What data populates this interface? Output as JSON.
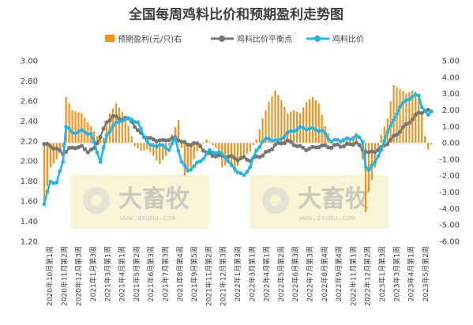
{
  "chart_data": {
    "type": "bar+line",
    "title": "全国每周鸡料比价和预期盈利走势图",
    "legend": [
      "预期盈利(元/只)右",
      "鸡料比价平衡点",
      "鸡料比价"
    ],
    "legend_position": "top",
    "colors": {
      "bar": "#f0941e",
      "balance": "#767676",
      "ratio": "#1fb6e8"
    },
    "left_axis": {
      "min": 1.2,
      "max": 3.0,
      "step": 0.2,
      "ticks": [
        "1.20",
        "1.40",
        "1.60",
        "1.80",
        "2.00",
        "2.20",
        "2.40",
        "2.60",
        "2.80",
        "3.00"
      ]
    },
    "right_axis": {
      "min": -6.0,
      "max": 5.0,
      "step": 1.0,
      "ticks": [
        "-6.00",
        "-5.00",
        "-4.00",
        "-3.00",
        "-2.00",
        "-1.00",
        "0.00",
        "1.00",
        "2.00",
        "3.00",
        "4.00",
        "5.00"
      ]
    },
    "x_tick_labels": [
      "2020年10月第1周",
      "2020年11月第2周",
      "2020年12月第3周",
      "2021年1月第3周",
      "2021年3月第1周",
      "2021年4月第1周",
      "2021年5月第2周",
      "2021年6月第3周",
      "2021年7月第3周",
      "2021年8月第4周",
      "2021年9月第5周",
      "2021年11月第2周",
      "2021年12月第3周",
      "2022年1月第3周",
      "2022年3月第1周",
      "2022年4月第1周",
      "2022年5月第2周",
      "2022年6月第3周",
      "2022年7月第3周",
      "2022年8月第4周",
      "2022年9月第4周",
      "2022年11月第1周",
      "2022年12月第2周",
      "2023年1月第3周",
      "2023年3月第1周",
      "2023年4月第1周",
      "2023年5月第2周"
    ],
    "watermark": {
      "brand": "大畜牧",
      "url": "www.dxumu.com"
    },
    "anchors": {
      "ratio": [
        [
          0,
          1.57
        ],
        [
          2,
          1.8
        ],
        [
          4,
          1.78
        ],
        [
          6,
          2.0
        ],
        [
          7,
          2.35
        ],
        [
          9,
          2.28
        ],
        [
          12,
          2.3
        ],
        [
          15,
          2.27
        ],
        [
          18,
          2.0
        ],
        [
          20,
          2.25
        ],
        [
          22,
          2.35
        ],
        [
          25,
          2.41
        ],
        [
          28,
          2.42
        ],
        [
          30,
          2.38
        ],
        [
          32,
          2.25
        ],
        [
          34,
          2.15
        ],
        [
          37,
          2.16
        ],
        [
          40,
          2.12
        ],
        [
          42,
          2.22
        ],
        [
          44,
          2.0
        ],
        [
          46,
          1.9
        ],
        [
          50,
          2.0
        ],
        [
          53,
          2.1
        ],
        [
          56,
          2.08
        ],
        [
          58,
          2.05
        ],
        [
          60,
          1.95
        ],
        [
          62,
          1.9
        ],
        [
          64,
          1.85
        ],
        [
          66,
          1.95
        ],
        [
          68,
          2.1
        ],
        [
          70,
          2.2
        ],
        [
          72,
          2.22
        ],
        [
          75,
          2.2
        ],
        [
          78,
          2.28
        ],
        [
          82,
          2.33
        ],
        [
          86,
          2.32
        ],
        [
          89,
          2.3
        ],
        [
          92,
          2.2
        ],
        [
          95,
          2.21
        ],
        [
          98,
          2.22
        ],
        [
          100,
          2.25
        ],
        [
          102,
          2.2
        ],
        [
          103,
          1.95
        ],
        [
          104,
          1.9
        ],
        [
          106,
          2.0
        ],
        [
          108,
          2.1
        ],
        [
          110,
          2.3
        ],
        [
          112,
          2.4
        ],
        [
          114,
          2.55
        ],
        [
          116,
          2.6
        ],
        [
          118,
          2.65
        ],
        [
          120,
          2.65
        ],
        [
          121,
          2.55
        ],
        [
          122,
          2.5
        ],
        [
          123,
          2.45
        ],
        [
          124,
          2.5
        ]
      ],
      "balance": [
        [
          0,
          2.17
        ],
        [
          2,
          2.15
        ],
        [
          4,
          2.12
        ],
        [
          6,
          2.08
        ],
        [
          8,
          2.12
        ],
        [
          10,
          2.14
        ],
        [
          12,
          2.14
        ],
        [
          14,
          2.1
        ],
        [
          16,
          2.12
        ],
        [
          18,
          2.25
        ],
        [
          20,
          2.38
        ],
        [
          22,
          2.45
        ],
        [
          24,
          2.42
        ],
        [
          26,
          2.43
        ],
        [
          28,
          2.4
        ],
        [
          30,
          2.3
        ],
        [
          32,
          2.25
        ],
        [
          34,
          2.22
        ],
        [
          36,
          2.21
        ],
        [
          38,
          2.2
        ],
        [
          40,
          2.22
        ],
        [
          42,
          2.23
        ],
        [
          44,
          2.2
        ],
        [
          46,
          2.16
        ],
        [
          48,
          2.18
        ],
        [
          50,
          2.15
        ],
        [
          52,
          2.08
        ],
        [
          54,
          2.06
        ],
        [
          56,
          2.05
        ],
        [
          58,
          2.05
        ],
        [
          60,
          2.04
        ],
        [
          62,
          2.02
        ],
        [
          64,
          2.03
        ],
        [
          66,
          2.01
        ],
        [
          68,
          2.04
        ],
        [
          70,
          2.06
        ],
        [
          72,
          2.1
        ],
        [
          74,
          2.16
        ],
        [
          76,
          2.18
        ],
        [
          78,
          2.2
        ],
        [
          80,
          2.17
        ],
        [
          82,
          2.14
        ],
        [
          84,
          2.12
        ],
        [
          86,
          2.13
        ],
        [
          88,
          2.15
        ],
        [
          90,
          2.15
        ],
        [
          92,
          2.14
        ],
        [
          94,
          2.16
        ],
        [
          96,
          2.15
        ],
        [
          98,
          2.17
        ],
        [
          100,
          2.18
        ],
        [
          102,
          2.12
        ],
        [
          104,
          2.08
        ],
        [
          106,
          2.1
        ],
        [
          108,
          2.13
        ],
        [
          110,
          2.18
        ],
        [
          112,
          2.24
        ],
        [
          114,
          2.3
        ],
        [
          116,
          2.36
        ],
        [
          118,
          2.42
        ],
        [
          120,
          2.48
        ],
        [
          122,
          2.5
        ],
        [
          124,
          2.5
        ]
      ],
      "profit": [
        [
          0,
          -3.8
        ],
        [
          2,
          -1.5
        ],
        [
          4,
          -1.0
        ],
        [
          6,
          -0.3
        ],
        [
          7,
          2.8
        ],
        [
          9,
          2.0
        ],
        [
          12,
          1.8
        ],
        [
          15,
          1.0
        ],
        [
          17,
          0.4
        ],
        [
          19,
          0.3
        ],
        [
          21,
          1.8
        ],
        [
          23,
          2.4
        ],
        [
          25,
          1.9
        ],
        [
          27,
          1.0
        ],
        [
          29,
          -0.2
        ],
        [
          31,
          -0.5
        ],
        [
          33,
          -0.4
        ],
        [
          35,
          -0.8
        ],
        [
          37,
          -1.3
        ],
        [
          39,
          -0.8
        ],
        [
          41,
          0.5
        ],
        [
          43,
          1.4
        ],
        [
          45,
          -2.0
        ],
        [
          47,
          -1.5
        ],
        [
          49,
          -0.5
        ],
        [
          52,
          0.2
        ],
        [
          55,
          -0.3
        ],
        [
          57,
          -1.5
        ],
        [
          59,
          -1.2
        ],
        [
          61,
          -1.8
        ],
        [
          63,
          -1.0
        ],
        [
          66,
          -0.5
        ],
        [
          68,
          0.2
        ],
        [
          70,
          1.5
        ],
        [
          72,
          2.5
        ],
        [
          74,
          3.2
        ],
        [
          76,
          2.6
        ],
        [
          78,
          1.8
        ],
        [
          80,
          2.0
        ],
        [
          82,
          1.8
        ],
        [
          84,
          2.5
        ],
        [
          86,
          2.8
        ],
        [
          88,
          2.4
        ],
        [
          90,
          1.0
        ],
        [
          92,
          0.2
        ],
        [
          94,
          -0.2
        ],
        [
          96,
          0.1
        ],
        [
          98,
          0.3
        ],
        [
          100,
          0.6
        ],
        [
          102,
          -1.0
        ],
        [
          103,
          -4.2
        ],
        [
          104,
          -3.0
        ],
        [
          106,
          -1.5
        ],
        [
          108,
          0.5
        ],
        [
          110,
          1.5
        ],
        [
          112,
          3.5
        ],
        [
          114,
          3.3
        ],
        [
          116,
          3.0
        ],
        [
          118,
          3.2
        ],
        [
          120,
          3.0
        ],
        [
          122,
          0.4
        ],
        [
          123,
          -0.4
        ],
        [
          124,
          -0.1
        ]
      ]
    }
  }
}
